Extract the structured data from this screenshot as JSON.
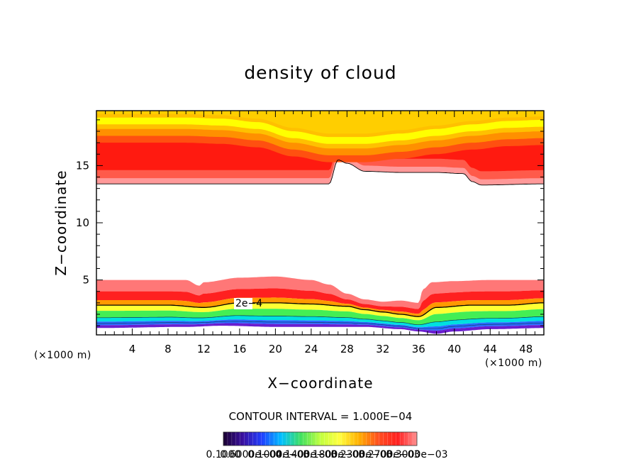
{
  "chart_data": {
    "type": "heatmap",
    "title": "density of cloud",
    "xlabel": "X−coordinate",
    "ylabel": "Z−coordinate",
    "x_unit": "(×1000 m)",
    "y_unit": "(×1000 m)",
    "xlim": [
      0,
      50
    ],
    "ylim": [
      0.2,
      19.8
    ],
    "x_ticks": [
      "4",
      "8",
      "12",
      "16",
      "20",
      "24",
      "28",
      "32",
      "36",
      "40",
      "44",
      "48"
    ],
    "y_ticks": [
      "5",
      "10",
      "15"
    ],
    "contour_interval": "CONTOUR INTERVAL = 1.000E−04",
    "contour_label": "2e−4",
    "colorbar_labels": [
      "0.1000",
      "0.6000e−04",
      "0.1000e−03",
      "0.1400e−03",
      "0.1800e−03",
      "0.2300e−03",
      "0.2700e−03",
      "0.3000e−03"
    ],
    "upper_layer": {
      "name": "upper cloud layer",
      "base_x": [
        0,
        10,
        26,
        27,
        28,
        30,
        34,
        38,
        41,
        42,
        43,
        50
      ],
      "base_z": [
        13.4,
        13.4,
        13.4,
        15.5,
        15.2,
        14.5,
        14.4,
        14.4,
        14.3,
        13.6,
        13.3,
        13.4
      ],
      "core_x": [
        0,
        10,
        14,
        18,
        22,
        26,
        30,
        34,
        38,
        42,
        46,
        50
      ],
      "core_z": [
        18.6,
        18.6,
        18.5,
        18.2,
        17.4,
        16.9,
        16.9,
        17.2,
        17.6,
        18.0,
        18.3,
        18.4
      ]
    },
    "lower_layer": {
      "name": "lower cloud layer",
      "top_x": [
        0,
        10,
        11.5,
        12,
        16,
        20,
        24,
        26,
        28,
        30,
        32,
        34,
        36,
        36.5,
        37.5,
        40,
        44,
        48,
        50
      ],
      "top_z": [
        5.0,
        5.0,
        4.5,
        4.8,
        5.2,
        5.3,
        5.0,
        4.6,
        3.8,
        3.3,
        3.1,
        3.2,
        3.0,
        4.2,
        4.8,
        4.9,
        5.0,
        5.0,
        5.0
      ],
      "contour_2e4_x": [
        0,
        8,
        12,
        16,
        20,
        24,
        28,
        30,
        32,
        34,
        36,
        38,
        42,
        46,
        50
      ],
      "contour_2e4_z": [
        2.8,
        2.8,
        2.6,
        3.0,
        3.0,
        2.9,
        2.7,
        2.4,
        2.2,
        2.0,
        1.8,
        2.6,
        2.8,
        2.8,
        3.0
      ],
      "bottom_x": [
        0,
        10,
        14,
        20,
        30,
        34,
        36,
        38,
        40,
        44,
        50
      ],
      "bottom_z": [
        0.8,
        0.9,
        1.0,
        0.9,
        0.9,
        0.7,
        0.5,
        0.3,
        0.5,
        0.7,
        0.8
      ]
    },
    "colors": {
      "upper_core": "#ffff00",
      "upper_mid": "#ff9000",
      "upper_edge": "#ff1a10",
      "upper_fringe": "#ff9999",
      "lower_top": "#ff7777",
      "lower_red": "#ff2020",
      "lower_orange": "#ff9900",
      "lower_yellow": "#ffff33",
      "lower_green": "#44ee55",
      "lower_cyan": "#00e0e0",
      "lower_blue": "#2a6bff",
      "lower_violet": "#6a1dcf"
    },
    "colorbar_colors": [
      "#1a0030",
      "#3a10a0",
      "#2040ff",
      "#00c0ff",
      "#40e060",
      "#c0ff40",
      "#ffff40",
      "#ffb000",
      "#ff5020",
      "#ff2020",
      "#ff9090"
    ]
  }
}
